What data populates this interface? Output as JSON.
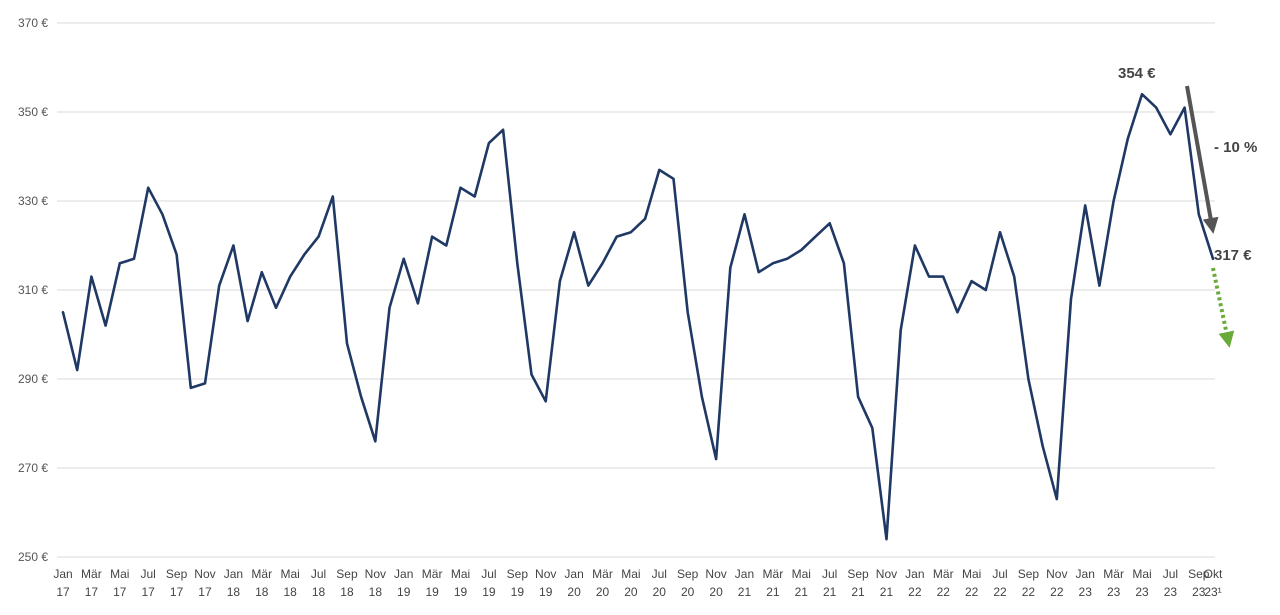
{
  "chart_data": {
    "type": "line",
    "title": "",
    "xlabel": "",
    "ylabel": "",
    "ylim": [
      250,
      370
    ],
    "y_ticks": [
      250,
      270,
      290,
      310,
      330,
      350,
      370
    ],
    "y_unit": "€",
    "grid": "horizontal",
    "x_ticks": [
      {
        "month": "Jan",
        "year": "17"
      },
      {
        "month": "Mär",
        "year": "17"
      },
      {
        "month": "Mai",
        "year": "17"
      },
      {
        "month": "Jul",
        "year": "17"
      },
      {
        "month": "Sep",
        "year": "17"
      },
      {
        "month": "Nov",
        "year": "17"
      },
      {
        "month": "Jan",
        "year": "18"
      },
      {
        "month": "Mär",
        "year": "18"
      },
      {
        "month": "Mai",
        "year": "18"
      },
      {
        "month": "Jul",
        "year": "18"
      },
      {
        "month": "Sep",
        "year": "18"
      },
      {
        "month": "Nov",
        "year": "18"
      },
      {
        "month": "Jan",
        "year": "19"
      },
      {
        "month": "Mär",
        "year": "19"
      },
      {
        "month": "Mai",
        "year": "19"
      },
      {
        "month": "Jul",
        "year": "19"
      },
      {
        "month": "Sep",
        "year": "19"
      },
      {
        "month": "Nov",
        "year": "19"
      },
      {
        "month": "Jan",
        "year": "20"
      },
      {
        "month": "Mär",
        "year": "20"
      },
      {
        "month": "Mai",
        "year": "20"
      },
      {
        "month": "Jul",
        "year": "20"
      },
      {
        "month": "Sep",
        "year": "20"
      },
      {
        "month": "Nov",
        "year": "20"
      },
      {
        "month": "Jan",
        "year": "21"
      },
      {
        "month": "Mär",
        "year": "21"
      },
      {
        "month": "Mai",
        "year": "21"
      },
      {
        "month": "Jul",
        "year": "21"
      },
      {
        "month": "Sep",
        "year": "21"
      },
      {
        "month": "Nov",
        "year": "21"
      },
      {
        "month": "Jan",
        "year": "22"
      },
      {
        "month": "Mär",
        "year": "22"
      },
      {
        "month": "Mai",
        "year": "22"
      },
      {
        "month": "Jul",
        "year": "22"
      },
      {
        "month": "Sep",
        "year": "22"
      },
      {
        "month": "Nov",
        "year": "22"
      },
      {
        "month": "Jan",
        "year": "23"
      },
      {
        "month": "Mär",
        "year": "23"
      },
      {
        "month": "Mai",
        "year": "23"
      },
      {
        "month": "Jul",
        "year": "23"
      },
      {
        "month": "Sep",
        "year": "23"
      },
      {
        "month": "Okt",
        "year": "23¹"
      }
    ],
    "series": [
      {
        "color": "#1f3864",
        "values": [
          305,
          292,
          313,
          302,
          316,
          317,
          333,
          327,
          318,
          288,
          289,
          311,
          320,
          303,
          314,
          306,
          313,
          318,
          322,
          331,
          298,
          286,
          276,
          306,
          317,
          307,
          322,
          320,
          333,
          331,
          343,
          346,
          316,
          291,
          285,
          312,
          323,
          311,
          316,
          322,
          323,
          326,
          337,
          335,
          305,
          286,
          272,
          315,
          327,
          314,
          316,
          317,
          319,
          322,
          325,
          316,
          286,
          279,
          254,
          301,
          320,
          313,
          313,
          305,
          312,
          310,
          323,
          313,
          290,
          275,
          263,
          308,
          329,
          311,
          330,
          344,
          354,
          351,
          345,
          351,
          327,
          317
        ]
      }
    ],
    "annotations": {
      "peak_label": "354 €",
      "current_label": "317 €",
      "change_label": "- 10 %",
      "arrow_dark_color": "#555555",
      "arrow_green_color": "#6aaa3a"
    }
  }
}
